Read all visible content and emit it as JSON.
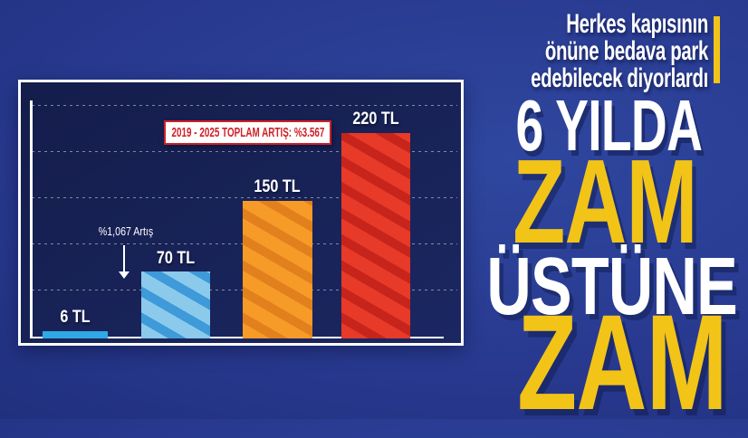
{
  "colors": {
    "background_blue": "#28398f",
    "panel_bg": "#18214f",
    "panel_border": "#ffffff",
    "accent_yellow": "#f2c417",
    "badge_red": "#cf2027",
    "bar1_blue": "#2fa9e6",
    "bar2_blue": "#8ccaec",
    "bar3_orange": "#f79b28",
    "bar4_red": "#e73a28"
  },
  "headline": {
    "lines": [
      "Herkes kapısının",
      "önüne bedava park",
      "edebilecek diyorlardı"
    ]
  },
  "big_words": {
    "word1": "6 YILDA",
    "word2": "ZAM",
    "word3": "ÜSTÜNE",
    "word4": "ZAM"
  },
  "chart": {
    "total_increase_label": "2019 - 2025 TOPLAM ARTIŞ: %3.567",
    "first_increase_annotation": "%1,067 Artış",
    "bars": [
      {
        "label": "6 TL",
        "value": 6
      },
      {
        "label": "70 TL",
        "value": 70
      },
      {
        "label": "150 TL",
        "value": 150
      },
      {
        "label": "220 TL",
        "value": 220
      }
    ]
  },
  "chart_data": {
    "type": "bar",
    "categories": [
      "6 TL",
      "70 TL",
      "150 TL",
      "220 TL"
    ],
    "values": [
      6,
      70,
      150,
      220
    ],
    "unit": "TL",
    "title": "",
    "xlabel": "",
    "ylabel": "",
    "ylim": [
      0,
      250
    ],
    "gridline_step": 50,
    "grid": true,
    "legend": false,
    "bar_colors": [
      "#2fa9e6",
      "#8ccaec",
      "#f79b28",
      "#e73a28"
    ],
    "annotations": [
      {
        "text": "2019 - 2025 TOPLAM ARTIŞ: %3.567",
        "style": "red-text-white-box"
      },
      {
        "text": "%1,067 Artış",
        "style": "small-white-label-with-down-arrow",
        "target_bar_index": 1
      }
    ]
  }
}
